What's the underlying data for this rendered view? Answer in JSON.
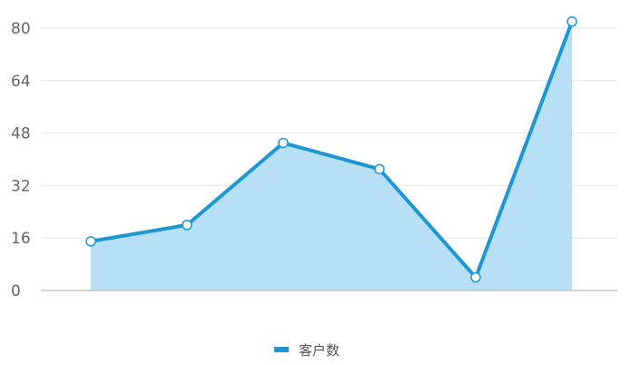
{
  "chart_data": {
    "type": "area",
    "title": "",
    "xlabel": "",
    "ylabel": "",
    "x": [
      "",
      "",
      "",
      "",
      "",
      ""
    ],
    "ylim": [
      0,
      80
    ],
    "yticks": [
      0,
      16,
      32,
      48,
      64,
      80
    ],
    "grid": true,
    "legend_position": "bottom",
    "series": [
      {
        "name": "客户数",
        "values": [
          15,
          20,
          45,
          37,
          4,
          82
        ],
        "line_color": "#1d96d4",
        "fill_color": "#b7dff6"
      }
    ]
  }
}
